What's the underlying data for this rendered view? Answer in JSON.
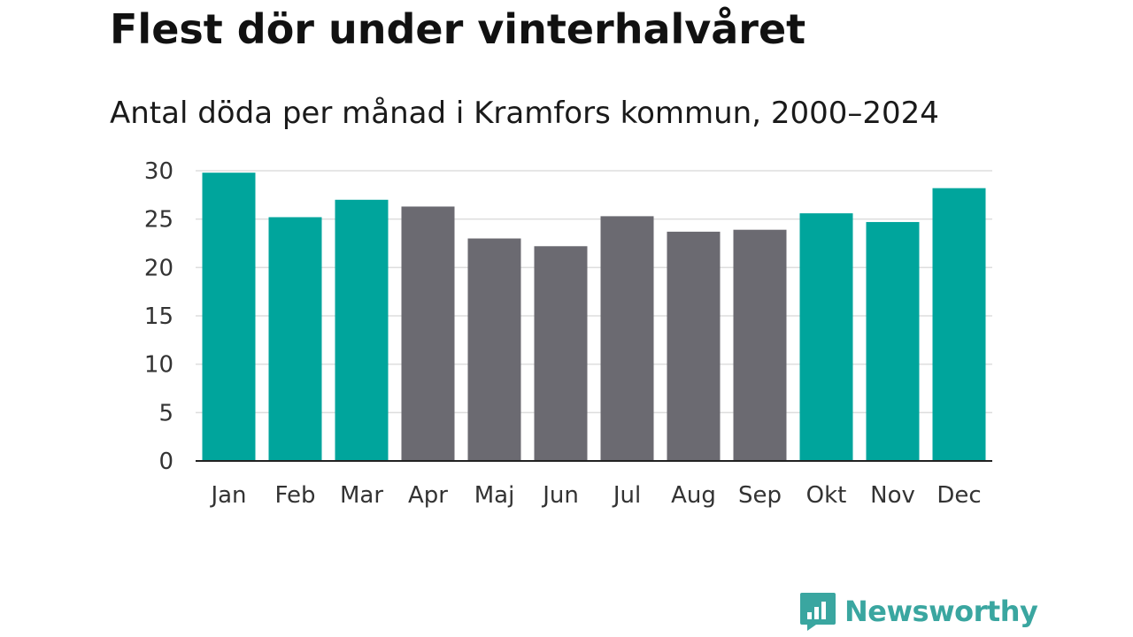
{
  "header": {
    "title": "Flest dör under vinterhalvåret",
    "subtitle": "Antal döda per månad i Kramfors kommun, 2000–2024"
  },
  "chart_data": {
    "type": "bar",
    "title": "Flest dör under vinterhalvåret",
    "subtitle": "Antal döda per månad i Kramfors kommun, 2000–2024",
    "categories": [
      "Jan",
      "Feb",
      "Mar",
      "Apr",
      "Maj",
      "Jun",
      "Jul",
      "Aug",
      "Sep",
      "Okt",
      "Nov",
      "Dec"
    ],
    "values": [
      29.8,
      25.2,
      27.0,
      26.3,
      23.0,
      22.2,
      25.3,
      23.7,
      23.9,
      25.6,
      24.7,
      28.2
    ],
    "highlight": [
      true,
      true,
      true,
      false,
      false,
      false,
      false,
      false,
      false,
      true,
      true,
      true
    ],
    "ylim": [
      0,
      30
    ],
    "yticks": [
      0,
      5,
      10,
      15,
      20,
      25,
      30
    ],
    "xlabel": "",
    "ylabel": "",
    "grid": true,
    "colors": {
      "highlight": "#00a59c",
      "base": "#6b6a71",
      "grid": "#dddddd",
      "axis": "#222222"
    }
  },
  "branding": {
    "logo_text": "Newsworthy",
    "logo_icon": "newsworthy-bar-chart-icon",
    "color": "#3aa6a0"
  }
}
